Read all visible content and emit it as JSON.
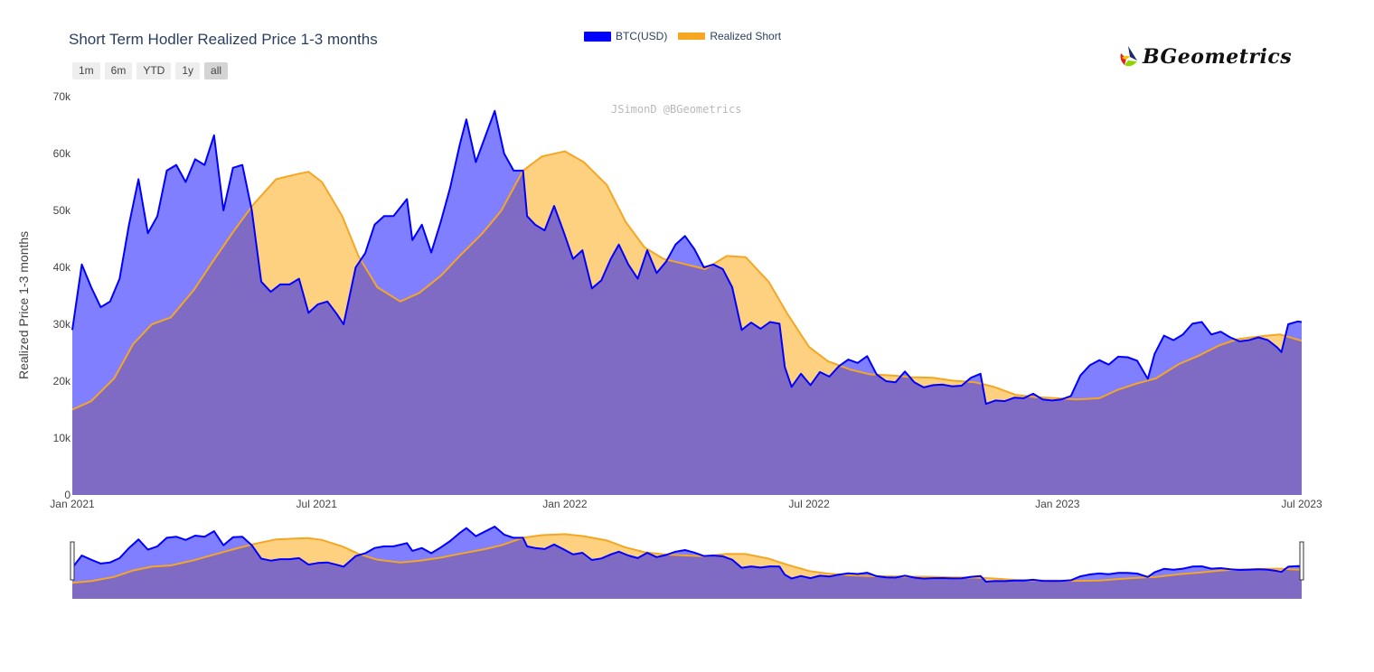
{
  "title": "Short Term Hodler Realized Price 1-3 months",
  "range_buttons": [
    "1m",
    "6m",
    "YTD",
    "1y",
    "all"
  ],
  "active_range": "all",
  "legend": [
    {
      "label": "BTC(USD)",
      "color": "#0000ff"
    },
    {
      "label": "Realized Short",
      "color": "#f5a623"
    }
  ],
  "logo_text": "BGeometrics",
  "watermark": "JSimonD @BGeometrics",
  "colors": {
    "btc_line": "#0000ff",
    "btc_fill_above": "#7f7fff",
    "realized_line": "#f5a623",
    "realized_fill": "#fdd17f",
    "overlap_fill": "#7f6ac4"
  },
  "chart_data": {
    "type": "area",
    "title": "Short Term Hodler Realized Price 1-3 months",
    "ylabel": "Realized Price 1-3 months",
    "ylim": [
      0,
      70000
    ],
    "y_ticks": [
      0,
      10000,
      20000,
      30000,
      40000,
      50000,
      60000,
      70000
    ],
    "y_tick_labels": [
      "0",
      "10k",
      "20k",
      "30k",
      "40k",
      "50k",
      "60k",
      "70k"
    ],
    "x_ticks": [
      "2021-01-01",
      "2021-07-01",
      "2022-01-01",
      "2022-07-01",
      "2023-01-01",
      "2023-07-01"
    ],
    "x_tick_labels": [
      "Jan 2021",
      "Jul 2021",
      "Jan 2022",
      "Jul 2022",
      "Jan 2023",
      "Jul 2023"
    ],
    "xlim": [
      "2021-01-01",
      "2023-07-01"
    ],
    "series": [
      {
        "name": "BTC(USD)",
        "points": [
          [
            "2021-01-01",
            29000
          ],
          [
            "2021-01-08",
            40500
          ],
          [
            "2021-01-15",
            36500
          ],
          [
            "2021-01-22",
            33000
          ],
          [
            "2021-01-29",
            34000
          ],
          [
            "2021-02-05",
            38000
          ],
          [
            "2021-02-12",
            47500
          ],
          [
            "2021-02-19",
            55500
          ],
          [
            "2021-02-26",
            46000
          ],
          [
            "2021-03-05",
            49000
          ],
          [
            "2021-03-12",
            57000
          ],
          [
            "2021-03-19",
            58000
          ],
          [
            "2021-03-26",
            55000
          ],
          [
            "2021-04-02",
            59000
          ],
          [
            "2021-04-09",
            58000
          ],
          [
            "2021-04-16",
            63200
          ],
          [
            "2021-04-23",
            50000
          ],
          [
            "2021-04-30",
            57500
          ],
          [
            "2021-05-07",
            58000
          ],
          [
            "2021-05-14",
            50000
          ],
          [
            "2021-05-21",
            37500
          ],
          [
            "2021-05-28",
            35700
          ],
          [
            "2021-06-04",
            37000
          ],
          [
            "2021-06-11",
            37000
          ],
          [
            "2021-06-18",
            38000
          ],
          [
            "2021-06-25",
            32000
          ],
          [
            "2021-07-02",
            33500
          ],
          [
            "2021-07-09",
            34000
          ],
          [
            "2021-07-16",
            31800
          ],
          [
            "2021-07-21",
            30000
          ],
          [
            "2021-07-30",
            40000
          ],
          [
            "2021-08-06",
            42500
          ],
          [
            "2021-08-13",
            47500
          ],
          [
            "2021-08-20",
            49000
          ],
          [
            "2021-08-27",
            49000
          ],
          [
            "2021-09-06",
            52000
          ],
          [
            "2021-09-10",
            44800
          ],
          [
            "2021-09-17",
            47500
          ],
          [
            "2021-09-24",
            42600
          ],
          [
            "2021-10-01",
            48000
          ],
          [
            "2021-10-08",
            54000
          ],
          [
            "2021-10-15",
            61500
          ],
          [
            "2021-10-20",
            66000
          ],
          [
            "2021-10-27",
            58500
          ],
          [
            "2021-11-03",
            63000
          ],
          [
            "2021-11-10",
            67500
          ],
          [
            "2021-11-17",
            60000
          ],
          [
            "2021-11-24",
            57000
          ],
          [
            "2021-12-01",
            57000
          ],
          [
            "2021-12-04",
            49000
          ],
          [
            "2021-12-10",
            47500
          ],
          [
            "2021-12-17",
            46500
          ],
          [
            "2021-12-24",
            50800
          ],
          [
            "2021-12-31",
            46300
          ],
          [
            "2022-01-07",
            41500
          ],
          [
            "2022-01-14",
            43000
          ],
          [
            "2022-01-21",
            36300
          ],
          [
            "2022-01-28",
            37700
          ],
          [
            "2022-02-04",
            41500
          ],
          [
            "2022-02-10",
            44000
          ],
          [
            "2022-02-17",
            40500
          ],
          [
            "2022-02-24",
            38000
          ],
          [
            "2022-03-03",
            43000
          ],
          [
            "2022-03-10",
            39000
          ],
          [
            "2022-03-17",
            41000
          ],
          [
            "2022-03-24",
            44000
          ],
          [
            "2022-03-31",
            45500
          ],
          [
            "2022-04-07",
            43200
          ],
          [
            "2022-04-14",
            40000
          ],
          [
            "2022-04-21",
            40500
          ],
          [
            "2022-04-28",
            39700
          ],
          [
            "2022-05-05",
            36500
          ],
          [
            "2022-05-12",
            29000
          ],
          [
            "2022-05-19",
            30300
          ],
          [
            "2022-05-26",
            29200
          ],
          [
            "2022-06-02",
            30400
          ],
          [
            "2022-06-09",
            30100
          ],
          [
            "2022-06-13",
            22500
          ],
          [
            "2022-06-18",
            19000
          ],
          [
            "2022-06-25",
            21300
          ],
          [
            "2022-07-02",
            19300
          ],
          [
            "2022-07-09",
            21600
          ],
          [
            "2022-07-16",
            20800
          ],
          [
            "2022-07-23",
            22600
          ],
          [
            "2022-07-30",
            23800
          ],
          [
            "2022-08-06",
            23200
          ],
          [
            "2022-08-13",
            24400
          ],
          [
            "2022-08-20",
            21200
          ],
          [
            "2022-08-27",
            20000
          ],
          [
            "2022-09-03",
            19800
          ],
          [
            "2022-09-10",
            21700
          ],
          [
            "2022-09-17",
            19800
          ],
          [
            "2022-09-24",
            18900
          ],
          [
            "2022-10-01",
            19300
          ],
          [
            "2022-10-08",
            19400
          ],
          [
            "2022-10-15",
            19100
          ],
          [
            "2022-10-22",
            19200
          ],
          [
            "2022-10-29",
            20600
          ],
          [
            "2022-11-05",
            21300
          ],
          [
            "2022-11-09",
            16000
          ],
          [
            "2022-11-16",
            16600
          ],
          [
            "2022-11-23",
            16500
          ],
          [
            "2022-11-30",
            17100
          ],
          [
            "2022-12-07",
            17000
          ],
          [
            "2022-12-14",
            17800
          ],
          [
            "2022-12-21",
            16800
          ],
          [
            "2022-12-28",
            16600
          ],
          [
            "2023-01-04",
            16800
          ],
          [
            "2023-01-11",
            17400
          ],
          [
            "2023-01-18",
            21000
          ],
          [
            "2023-01-25",
            22800
          ],
          [
            "2023-02-01",
            23700
          ],
          [
            "2023-02-08",
            22900
          ],
          [
            "2023-02-15",
            24300
          ],
          [
            "2023-02-22",
            24200
          ],
          [
            "2023-03-01",
            23600
          ],
          [
            "2023-03-09",
            20400
          ],
          [
            "2023-03-14",
            24800
          ],
          [
            "2023-03-21",
            28000
          ],
          [
            "2023-03-28",
            27200
          ],
          [
            "2023-04-04",
            28200
          ],
          [
            "2023-04-11",
            30100
          ],
          [
            "2023-04-18",
            30400
          ],
          [
            "2023-04-25",
            28200
          ],
          [
            "2023-05-02",
            28700
          ],
          [
            "2023-05-09",
            27700
          ],
          [
            "2023-05-16",
            27000
          ],
          [
            "2023-05-23",
            27200
          ],
          [
            "2023-05-30",
            27700
          ],
          [
            "2023-06-06",
            27200
          ],
          [
            "2023-06-13",
            25900
          ],
          [
            "2023-06-16",
            25100
          ],
          [
            "2023-06-21",
            30000
          ],
          [
            "2023-06-28",
            30500
          ],
          [
            "2023-07-01",
            30400
          ]
        ]
      },
      {
        "name": "Realized Short",
        "points": [
          [
            "2021-01-01",
            15000
          ],
          [
            "2021-01-15",
            16500
          ],
          [
            "2021-02-01",
            20500
          ],
          [
            "2021-02-15",
            26500
          ],
          [
            "2021-03-01",
            30000
          ],
          [
            "2021-03-15",
            31200
          ],
          [
            "2021-04-01",
            36000
          ],
          [
            "2021-04-15",
            41000
          ],
          [
            "2021-05-01",
            46500
          ],
          [
            "2021-05-15",
            51000
          ],
          [
            "2021-06-01",
            55500
          ],
          [
            "2021-06-15",
            56300
          ],
          [
            "2021-06-25",
            56800
          ],
          [
            "2021-07-05",
            55000
          ],
          [
            "2021-07-20",
            49000
          ],
          [
            "2021-08-01",
            42000
          ],
          [
            "2021-08-15",
            36500
          ],
          [
            "2021-09-01",
            34000
          ],
          [
            "2021-09-15",
            35500
          ],
          [
            "2021-10-01",
            38500
          ],
          [
            "2021-10-15",
            42000
          ],
          [
            "2021-11-01",
            46000
          ],
          [
            "2021-11-15",
            50000
          ],
          [
            "2021-12-01",
            57000
          ],
          [
            "2021-12-15",
            59500
          ],
          [
            "2022-01-01",
            60400
          ],
          [
            "2022-01-15",
            58500
          ],
          [
            "2022-02-01",
            54500
          ],
          [
            "2022-02-15",
            48000
          ],
          [
            "2022-03-01",
            43500
          ],
          [
            "2022-03-15",
            41500
          ],
          [
            "2022-04-01",
            40500
          ],
          [
            "2022-04-15",
            39700
          ],
          [
            "2022-05-01",
            42000
          ],
          [
            "2022-05-15",
            41800
          ],
          [
            "2022-06-01",
            37500
          ],
          [
            "2022-06-15",
            31800
          ],
          [
            "2022-07-01",
            26000
          ],
          [
            "2022-07-15",
            23500
          ],
          [
            "2022-08-01",
            22000
          ],
          [
            "2022-08-15",
            21200
          ],
          [
            "2022-09-01",
            21000
          ],
          [
            "2022-09-15",
            20700
          ],
          [
            "2022-10-01",
            20600
          ],
          [
            "2022-10-15",
            20100
          ],
          [
            "2022-11-01",
            19800
          ],
          [
            "2022-11-15",
            19000
          ],
          [
            "2022-12-01",
            17600
          ],
          [
            "2022-12-15",
            17200
          ],
          [
            "2023-01-01",
            17000
          ],
          [
            "2023-01-15",
            16800
          ],
          [
            "2023-02-01",
            17000
          ],
          [
            "2023-02-15",
            18500
          ],
          [
            "2023-03-01",
            19600
          ],
          [
            "2023-03-15",
            20500
          ],
          [
            "2023-04-01",
            23000
          ],
          [
            "2023-04-15",
            24400
          ],
          [
            "2023-05-01",
            26300
          ],
          [
            "2023-05-15",
            27400
          ],
          [
            "2023-06-01",
            27900
          ],
          [
            "2023-06-15",
            28200
          ],
          [
            "2023-07-01",
            27100
          ]
        ]
      }
    ],
    "legend_position": "top-center",
    "grid": false,
    "range_slider": true
  }
}
